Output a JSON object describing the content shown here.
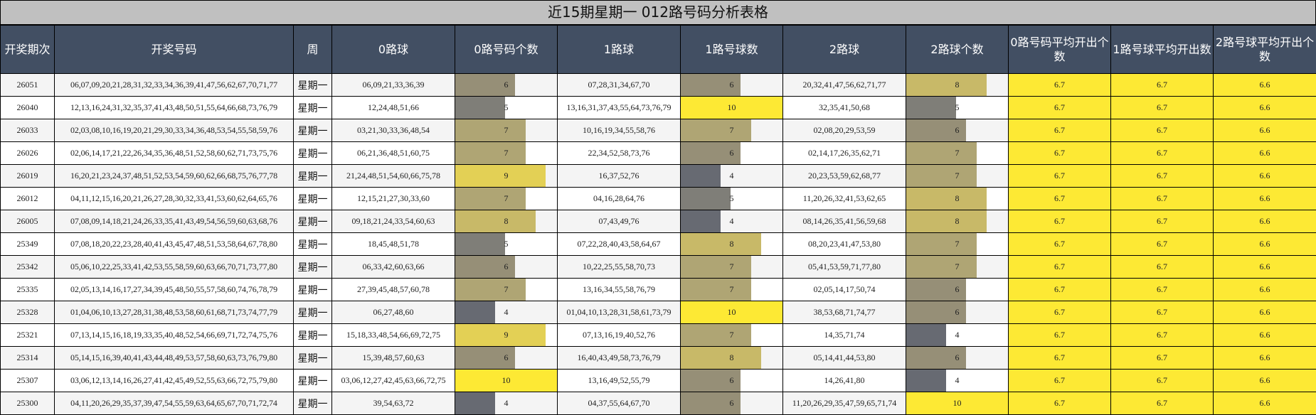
{
  "title": "近15期星期一 012路号码分析表格",
  "headers": [
    "开奖期次",
    "开奖号码",
    "周",
    "0路球",
    "0路号码个数",
    "1路球",
    "1路号球数",
    "2路球",
    "2路球个数",
    "0路号码平均开出个数",
    "1路号球平均开出数",
    "2路号球平均开出个数"
  ],
  "bar_colors": {
    "4": "#676a72",
    "5": "#7f7e78",
    "6": "#968f77",
    "7": "#afa574",
    "8": "#c8b968",
    "9": "#e3d055",
    "10": "#fde934"
  },
  "rows": [
    {
      "issue": "26051",
      "numbers": "06,07,09,20,21,28,31,32,33,34,36,39,41,47,56,62,67,70,71,77",
      "week": "星期一",
      "r0": "06,09,21,33,36,39",
      "c0": "6",
      "r1": "07,28,31,34,67,70",
      "c1": "6",
      "r2": "20,32,41,47,56,62,71,77",
      "c2": "8",
      "a0": "6.7",
      "a1": "6.7",
      "a2": "6.6"
    },
    {
      "issue": "26040",
      "numbers": "12,13,16,24,31,32,35,37,41,43,48,50,51,55,64,66,68,73,76,79",
      "week": "星期一",
      "r0": "12,24,48,51,66",
      "c0": "5",
      "r1": "13,16,31,37,43,55,64,73,76,79",
      "c1": "10",
      "r2": "32,35,41,50,68",
      "c2": "5",
      "a0": "6.7",
      "a1": "6.7",
      "a2": "6.6"
    },
    {
      "issue": "26033",
      "numbers": "02,03,08,10,16,19,20,21,29,30,33,34,36,48,53,54,55,58,59,76",
      "week": "星期一",
      "r0": "03,21,30,33,36,48,54",
      "c0": "7",
      "r1": "10,16,19,34,55,58,76",
      "c1": "7",
      "r2": "02,08,20,29,53,59",
      "c2": "6",
      "a0": "6.7",
      "a1": "6.7",
      "a2": "6.6"
    },
    {
      "issue": "26026",
      "numbers": "02,06,14,17,21,22,26,34,35,36,48,51,52,58,60,62,71,73,75,76",
      "week": "星期一",
      "r0": "06,21,36,48,51,60,75",
      "c0": "7",
      "r1": "22,34,52,58,73,76",
      "c1": "6",
      "r2": "02,14,17,26,35,62,71",
      "c2": "7",
      "a0": "6.7",
      "a1": "6.7",
      "a2": "6.6"
    },
    {
      "issue": "26019",
      "numbers": "16,20,21,23,24,37,48,51,52,53,54,59,60,62,66,68,75,76,77,78",
      "week": "星期一",
      "r0": "21,24,48,51,54,60,66,75,78",
      "c0": "9",
      "r1": "16,37,52,76",
      "c1": "4",
      "r2": "20,23,53,59,62,68,77",
      "c2": "7",
      "a0": "6.7",
      "a1": "6.7",
      "a2": "6.6"
    },
    {
      "issue": "26012",
      "numbers": "04,11,12,15,16,20,21,26,27,28,30,32,33,41,53,60,62,64,65,76",
      "week": "星期一",
      "r0": "12,15,21,27,30,33,60",
      "c0": "7",
      "r1": "04,16,28,64,76",
      "c1": "5",
      "r2": "11,20,26,32,41,53,62,65",
      "c2": "8",
      "a0": "6.7",
      "a1": "6.7",
      "a2": "6.6"
    },
    {
      "issue": "26005",
      "numbers": "07,08,09,14,18,21,24,26,33,35,41,43,49,54,56,59,60,63,68,76",
      "week": "星期一",
      "r0": "09,18,21,24,33,54,60,63",
      "c0": "8",
      "r1": "07,43,49,76",
      "c1": "4",
      "r2": "08,14,26,35,41,56,59,68",
      "c2": "8",
      "a0": "6.7",
      "a1": "6.7",
      "a2": "6.6"
    },
    {
      "issue": "25349",
      "numbers": "07,08,18,20,22,23,28,40,41,43,45,47,48,51,53,58,64,67,78,80",
      "week": "星期一",
      "r0": "18,45,48,51,78",
      "c0": "5",
      "r1": "07,22,28,40,43,58,64,67",
      "c1": "8",
      "r2": "08,20,23,41,47,53,80",
      "c2": "7",
      "a0": "6.7",
      "a1": "6.7",
      "a2": "6.6"
    },
    {
      "issue": "25342",
      "numbers": "05,06,10,22,25,33,41,42,53,55,58,59,60,63,66,70,71,73,77,80",
      "week": "星期一",
      "r0": "06,33,42,60,63,66",
      "c0": "6",
      "r1": "10,22,25,55,58,70,73",
      "c1": "7",
      "r2": "05,41,53,59,71,77,80",
      "c2": "7",
      "a0": "6.7",
      "a1": "6.7",
      "a2": "6.6"
    },
    {
      "issue": "25335",
      "numbers": "02,05,13,14,16,17,27,34,39,45,48,50,55,57,58,60,74,76,78,79",
      "week": "星期一",
      "r0": "27,39,45,48,57,60,78",
      "c0": "7",
      "r1": "13,16,34,55,58,76,79",
      "c1": "7",
      "r2": "02,05,14,17,50,74",
      "c2": "6",
      "a0": "6.7",
      "a1": "6.7",
      "a2": "6.6"
    },
    {
      "issue": "25328",
      "numbers": "01,04,06,10,13,27,28,31,38,48,53,58,60,61,68,71,73,74,77,79",
      "week": "星期一",
      "r0": "06,27,48,60",
      "c0": "4",
      "r1": "01,04,10,13,28,31,58,61,73,79",
      "c1": "10",
      "r2": "38,53,68,71,74,77",
      "c2": "6",
      "a0": "6.7",
      "a1": "6.7",
      "a2": "6.6"
    },
    {
      "issue": "25321",
      "numbers": "07,13,14,15,16,18,19,33,35,40,48,52,54,66,69,71,72,74,75,76",
      "week": "星期一",
      "r0": "15,18,33,48,54,66,69,72,75",
      "c0": "9",
      "r1": "07,13,16,19,40,52,76",
      "c1": "7",
      "r2": "14,35,71,74",
      "c2": "4",
      "a0": "6.7",
      "a1": "6.7",
      "a2": "6.6"
    },
    {
      "issue": "25314",
      "numbers": "05,14,15,16,39,40,41,43,44,48,49,53,57,58,60,63,73,76,79,80",
      "week": "星期一",
      "r0": "15,39,48,57,60,63",
      "c0": "6",
      "r1": "16,40,43,49,58,73,76,79",
      "c1": "8",
      "r2": "05,14,41,44,53,80",
      "c2": "6",
      "a0": "6.7",
      "a1": "6.7",
      "a2": "6.6"
    },
    {
      "issue": "25307",
      "numbers": "03,06,12,13,14,16,26,27,41,42,45,49,52,55,63,66,72,75,79,80",
      "week": "星期一",
      "r0": "03,06,12,27,42,45,63,66,72,75",
      "c0": "10",
      "r1": "13,16,49,52,55,79",
      "c1": "6",
      "r2": "14,26,41,80",
      "c2": "4",
      "a0": "6.7",
      "a1": "6.7",
      "a2": "6.6"
    },
    {
      "issue": "25300",
      "numbers": "04,11,20,26,29,35,37,39,47,54,55,59,63,64,65,67,70,71,72,74",
      "week": "星期一",
      "r0": "39,54,63,72",
      "c0": "4",
      "r1": "04,37,55,64,67,70",
      "c1": "6",
      "r2": "11,20,26,29,35,47,59,65,71,74",
      "c2": "10",
      "a0": "6.7",
      "a1": "6.7",
      "a2": "6.6"
    }
  ]
}
